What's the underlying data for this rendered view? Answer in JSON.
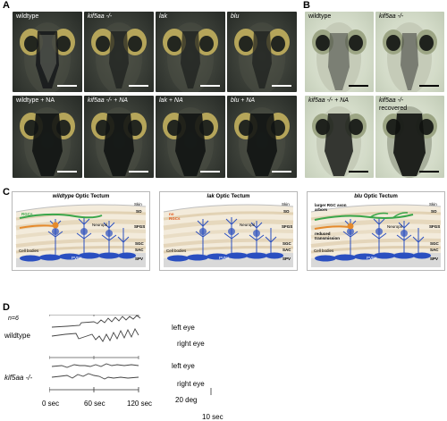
{
  "panels": {
    "A": "A",
    "B": "B",
    "C": "C",
    "D": "D"
  },
  "panel_a": {
    "images": [
      {
        "label": "wildtype",
        "label_italic": false
      },
      {
        "label": "kif5aa -/-",
        "label_italic": true
      },
      {
        "label": "lak",
        "label_italic": true
      },
      {
        "label": "blu",
        "label_italic": true
      },
      {
        "label": "wildtype + NA",
        "label_italic": false
      },
      {
        "label": "kif5aa -/- + NA",
        "label_italic": true
      },
      {
        "label": "lak + NA",
        "label_italic": true
      },
      {
        "label": "blu + NA",
        "label_italic": true
      }
    ]
  },
  "panel_b": {
    "images": [
      {
        "label": "wildtype",
        "label2": ""
      },
      {
        "label": "kif5aa -/-",
        "label2": ""
      },
      {
        "label": "kif5aa -/- + NA",
        "label2": ""
      },
      {
        "label": "kif5aa -/-",
        "label2": "recovered"
      }
    ]
  },
  "panel_c": {
    "wt": {
      "title_pre": "wildtype",
      "title_post": " Optic Tectum",
      "skin": "Skin",
      "layers": [
        "SO",
        "SFGS",
        "SGC",
        "SAC",
        "SPV"
      ],
      "rgc": "RGCs",
      "neuropil": "Neuropil",
      "cell_bodies": "Cell bodies",
      "pvns": "PVNs"
    },
    "lak": {
      "title_pre": "lak",
      "title_post": " Optic Tectum",
      "skin": "Skin",
      "layers": [
        "SO",
        "SFGS",
        "SGC",
        "SAC",
        "SPV"
      ],
      "rgc_line1": "no",
      "rgc_line2": "RGCs",
      "neuropil": "Neuropil",
      "cell_bodies": "Cell bodies",
      "pvns": "PVNs"
    },
    "blu": {
      "title_pre": "blu",
      "title_post": " Optic Tectum",
      "skin": "Skin",
      "layers": [
        "SO",
        "SFGS",
        "SGC",
        "SAC",
        "SPV"
      ],
      "note1_line1": "larger RGC axon",
      "note1_line2": "arbors",
      "note2_line1": "reduced",
      "note2_line2": "transmission",
      "neuropil": "Neuropil",
      "cell_bodies": "Cell bodies",
      "pvns": "PVNs"
    },
    "colors": {
      "rgc_wt": "#3aa64a",
      "rgc_lak": "#e2581c",
      "orange": "#e58a2c",
      "pvn": "#2a4fc0",
      "layer": "#efe4cf"
    }
  },
  "panel_d": {
    "n": "n=6",
    "groups": [
      {
        "name": "wildtype",
        "name_italic": false,
        "left": "left eye",
        "right": "right eye"
      },
      {
        "name": "kif5aa -/-",
        "name_italic": true,
        "left": "left eye",
        "right": "right eye"
      }
    ],
    "time_labels": [
      "0 sec",
      "60 sec",
      "120 sec"
    ],
    "scale_y": "20 deg",
    "scale_x": "10 sec"
  }
}
